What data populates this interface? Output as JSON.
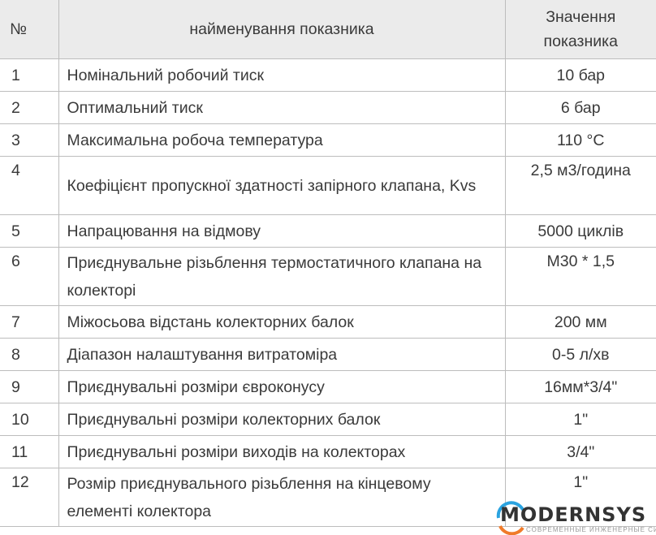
{
  "table": {
    "headers": [
      "№",
      "найменування показника",
      "Значення показника"
    ],
    "rows": [
      {
        "num": "1",
        "name": "Номінальний робочий тиск",
        "value": "10 бар"
      },
      {
        "num": "2",
        "name": "Оптимальний тиск",
        "value": "6 бар"
      },
      {
        "num": "3",
        "name": "Максимальна робоча температура",
        "value": "110 °C"
      },
      {
        "num": "4",
        "name": "Коефіцієнт пропускної здатності запірного клапана, Kvs",
        "value": "2,5 м3/година"
      },
      {
        "num": "5",
        "name": "Напрацювання на відмову",
        "value": "5000 циклів"
      },
      {
        "num": "6",
        "name": "Приєднувальне різьблення термостатичного клапана на колекторі",
        "value": "M30 * 1,5"
      },
      {
        "num": "7",
        "name": "Міжосьова відстань колекторних балок",
        "value": "200 мм"
      },
      {
        "num": "8",
        "name": "Діапазон налаштування витратоміра",
        "value": "0-5 л/хв"
      },
      {
        "num": "9",
        "name": "Приєднувальні розміри євроконусу",
        "value": "16мм*3/4\""
      },
      {
        "num": "10",
        "name": "Приєднувальні розміри колекторних балок",
        "value": "1\""
      },
      {
        "num": "11",
        "name": "Приєднувальні розміри виходів на колекторах",
        "value": "3/4\""
      },
      {
        "num": "12",
        "name": "Розмір приєднувального різьблення на кінцевому елементі колектора",
        "value": "1\""
      }
    ]
  },
  "watermark": {
    "brand": "MODERNSYS",
    "tagline": "СОВРЕМЕННЫЕ ИНЖЕНЕРНЫЕ СИСТЕМЫ"
  },
  "colors": {
    "header_bg": "#ebebeb",
    "border": "#bdbdbd",
    "logo_blue": "#2aa3e0",
    "logo_orange": "#f07b2a"
  }
}
